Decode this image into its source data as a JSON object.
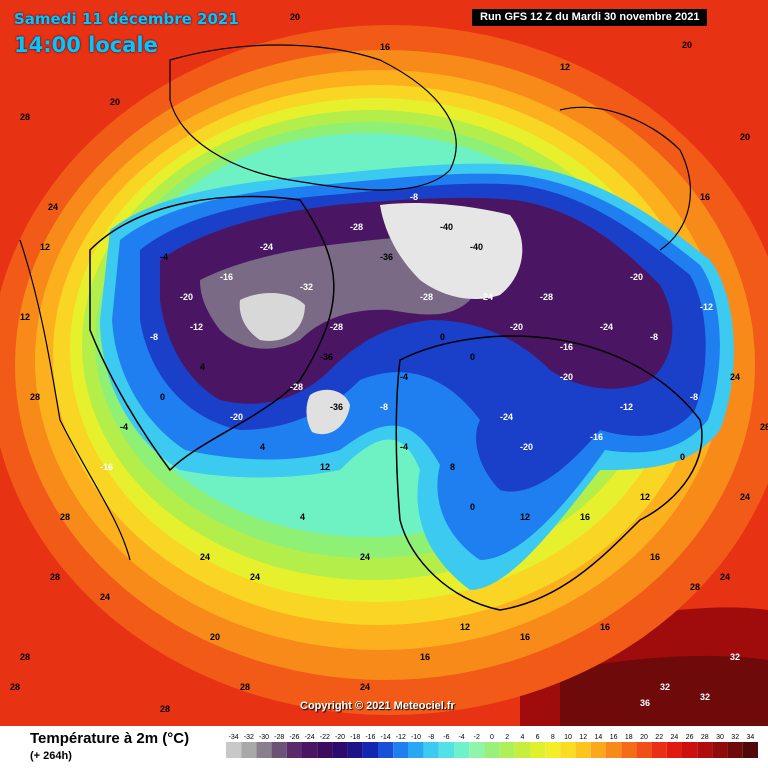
{
  "header": {
    "date": "Samedi 11 décembre 2021",
    "time": "14:00 locale",
    "run": "Run GFS 12 Z du Mardi 30 novembre 2021"
  },
  "copyright": "Copyright © 2021 Meteociel.fr",
  "footer": {
    "variable": "Température à 2m (°C)",
    "lead": "(+ 264h)"
  },
  "scale": {
    "ticks": [
      "-34",
      "-32",
      "-30",
      "-28",
      "-26",
      "-24",
      "-22",
      "-20",
      "-18",
      "-16",
      "-14",
      "-12",
      "-10",
      "-8",
      "-6",
      "-4",
      "-2",
      "0",
      "2",
      "4",
      "6",
      "8",
      "10",
      "12",
      "14",
      "16",
      "18",
      "20",
      "22",
      "24",
      "26",
      "28",
      "30",
      "32",
      "34"
    ],
    "colors": [
      "#c8c8c8",
      "#a9a9a9",
      "#8a7f8e",
      "#6d5277",
      "#5a2a6b",
      "#4a1664",
      "#3c0a5e",
      "#2d0a6e",
      "#1c1488",
      "#1226b0",
      "#1a4fd8",
      "#1f7ff0",
      "#26a8f5",
      "#3ccaf0",
      "#52e2e6",
      "#6ff2cc",
      "#8ff5a8",
      "#99f07a",
      "#aef05a",
      "#c6ee3c",
      "#def02e",
      "#f2ee28",
      "#fadc22",
      "#fcc41e",
      "#fca81c",
      "#f88a1a",
      "#f46c18",
      "#f04e16",
      "#ea3014",
      "#e01c12",
      "#cc1010",
      "#b00e0e",
      "#900c0c",
      "#700a0a",
      "#500808"
    ]
  },
  "map": {
    "labels": [
      {
        "t": "20",
        "c": "#000"
      },
      {
        "t": "28",
        "c": "#000"
      },
      {
        "t": "24",
        "c": "#000"
      },
      {
        "t": "16",
        "c": "#000"
      },
      {
        "t": "12",
        "c": "#000"
      },
      {
        "t": "4",
        "c": "#000"
      },
      {
        "t": "0",
        "c": "#000"
      },
      {
        "t": "-4",
        "c": "#000"
      },
      {
        "t": "-8",
        "c": "#fff"
      },
      {
        "t": "-12",
        "c": "#fff"
      },
      {
        "t": "-16",
        "c": "#fff"
      },
      {
        "t": "-20",
        "c": "#fff"
      },
      {
        "t": "-24",
        "c": "#fff"
      },
      {
        "t": "-28",
        "c": "#fff"
      },
      {
        "t": "-32",
        "c": "#fff"
      },
      {
        "t": "-36",
        "c": "#000"
      },
      {
        "t": "-40",
        "c": "#000"
      },
      {
        "t": "32",
        "c": "#fff"
      },
      {
        "t": "36",
        "c": "#fff"
      },
      {
        "t": "8",
        "c": "#000"
      }
    ]
  }
}
